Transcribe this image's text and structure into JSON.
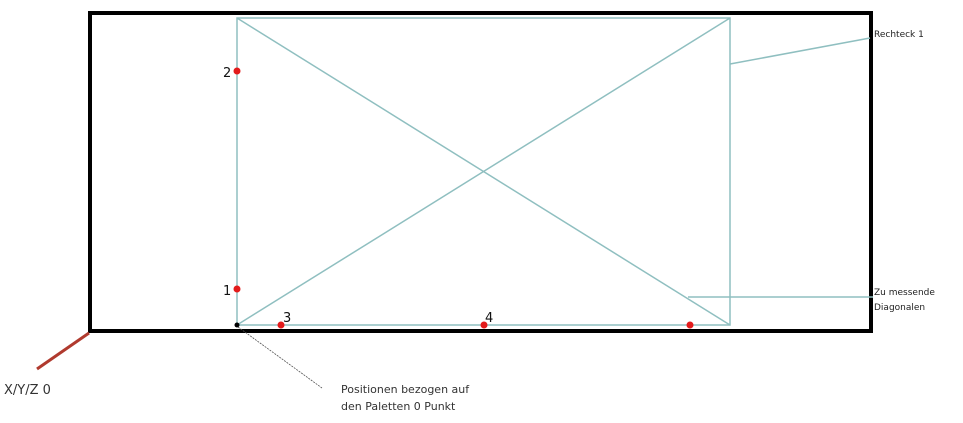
{
  "rectangle_label": "Rechteck 1",
  "diagonals_label": {
    "line1": "Zu messende",
    "line2": "Diagonalen"
  },
  "origin_label": "X/Y/Z 0",
  "reference_note": {
    "line1": "Positionen bezogen auf",
    "line2": "den Paletten 0 Punkt"
  },
  "points": [
    {
      "label": "1"
    },
    {
      "label": "2"
    },
    {
      "label": "3"
    },
    {
      "label": "4"
    },
    {
      "label": ""
    }
  ],
  "colors": {
    "pallet_outline": "#000000",
    "rectangle_line": "#8fbfc0",
    "point_marker": "#e31b1b",
    "origin_axis": "#b03a2e",
    "origin_marker": "#000000",
    "reference_line": "#555555"
  }
}
